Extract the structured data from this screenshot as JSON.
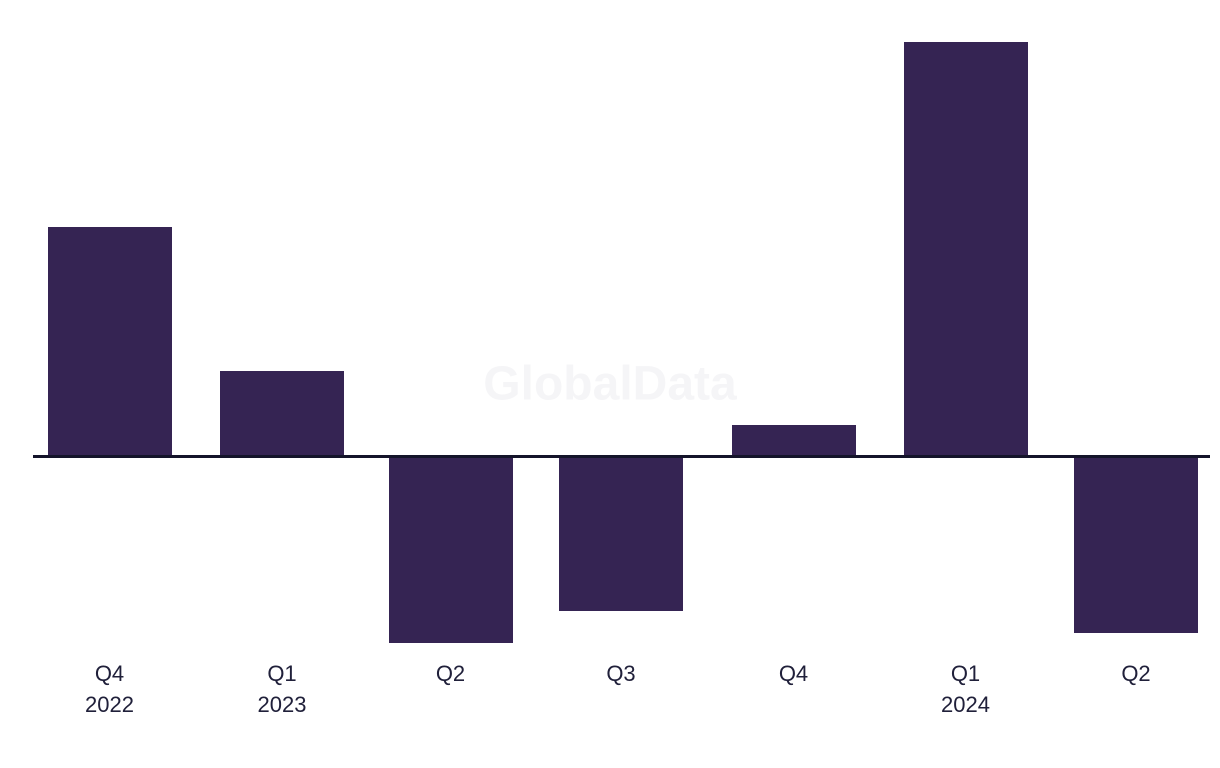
{
  "watermark": {
    "text": "GlobalData",
    "color": "#f5f5f7"
  },
  "chart_data": {
    "type": "bar",
    "title": "",
    "xlabel": "",
    "ylabel": "",
    "categories": [
      {
        "quarter": "Q4",
        "year": "2022"
      },
      {
        "quarter": "Q1",
        "year": "2023"
      },
      {
        "quarter": "Q2",
        "year": ""
      },
      {
        "quarter": "Q3",
        "year": ""
      },
      {
        "quarter": "Q4",
        "year": ""
      },
      {
        "quarter": "Q1",
        "year": "2024"
      },
      {
        "quarter": "Q2",
        "year": ""
      }
    ],
    "values": [
      228,
      84,
      -185,
      -153,
      30,
      413,
      -175
    ],
    "value_scale": "relative (no y-axis ticks or value labels shown)",
    "ylim": [
      -250,
      470
    ],
    "grid": false,
    "legend": false,
    "y_axis_visible": false,
    "x_axis_line": true,
    "bar_color": "#352453",
    "axis_line_color": "#14142a",
    "label_color": "#20203a",
    "background_color": "#ffffff"
  }
}
